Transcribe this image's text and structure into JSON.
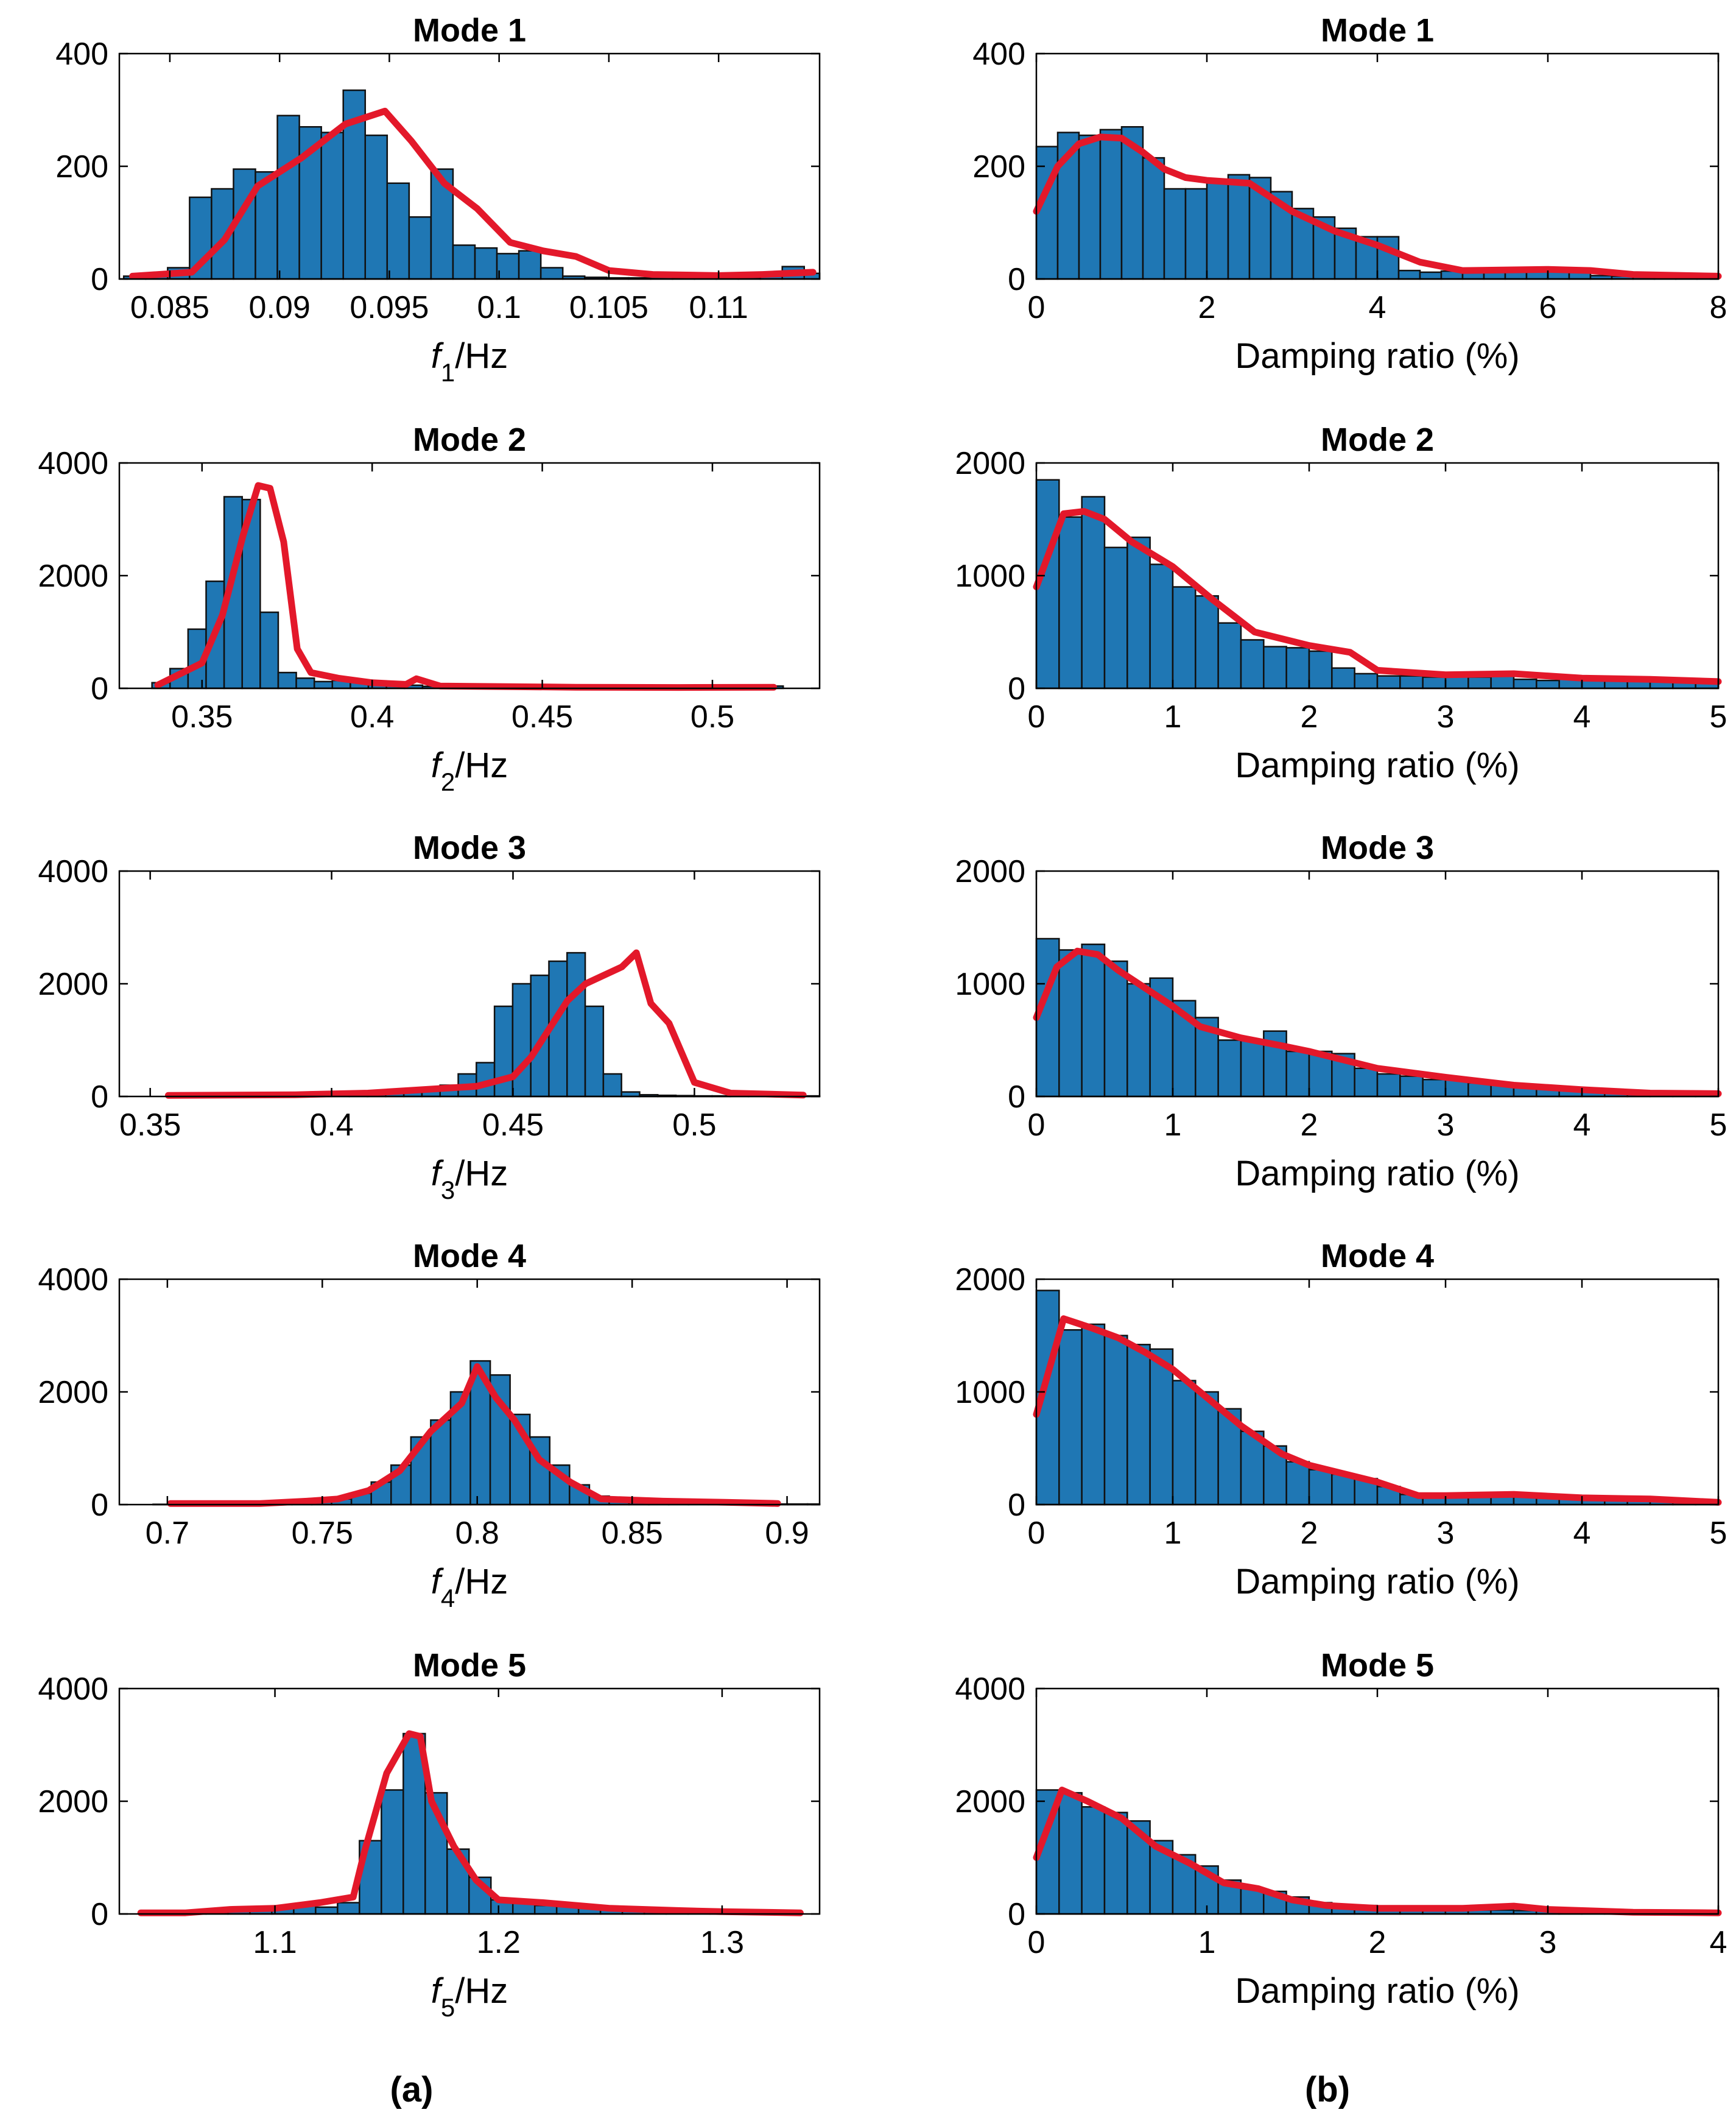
{
  "panel_labels": [
    "(a)",
    "(b)"
  ],
  "chart_data": [
    {
      "type": "bar",
      "column": "a",
      "title": "Mode 1",
      "xlabel_symbol": "f",
      "xlabel_subscript": "1",
      "xlabel_unit": "/Hz",
      "xlim": [
        0.0827,
        0.1146
      ],
      "ylim": [
        0,
        400
      ],
      "xticks": [
        0.085,
        0.09,
        0.095,
        0.1,
        0.105,
        0.11
      ],
      "xtick_labels": [
        "0.085",
        "0.09",
        "0.095",
        "0.1",
        "0.105",
        "0.11"
      ],
      "yticks": [
        0,
        200,
        400
      ],
      "ytick_labels": [
        "0",
        "200",
        "400"
      ],
      "bin_start": 0.0829,
      "bin_width": 0.001,
      "counts": [
        5,
        8,
        20,
        145,
        160,
        195,
        190,
        290,
        270,
        260,
        335,
        255,
        170,
        110,
        195,
        60,
        55,
        45,
        50,
        20,
        5,
        3,
        2,
        2,
        3,
        2,
        3,
        2,
        3,
        5,
        22,
        10
      ],
      "fit_x": [
        0.0833,
        0.086,
        0.0875,
        0.089,
        0.091,
        0.093,
        0.0948,
        0.096,
        0.0975,
        0.099,
        0.1005,
        0.102,
        0.1035,
        0.105,
        0.107,
        0.11,
        0.112,
        0.1143
      ],
      "fit_y": [
        5,
        12,
        70,
        165,
        215,
        275,
        298,
        245,
        170,
        125,
        65,
        50,
        40,
        15,
        8,
        6,
        8,
        12
      ]
    },
    {
      "type": "bar",
      "column": "b",
      "title": "Mode 1",
      "xlabel": "Damping ratio (%)",
      "xlim": [
        0,
        8
      ],
      "ylim": [
        0,
        400
      ],
      "xticks": [
        0,
        2,
        4,
        6,
        8
      ],
      "xtick_labels": [
        "0",
        "2",
        "4",
        "6",
        "8"
      ],
      "yticks": [
        0,
        200,
        400
      ],
      "ytick_labels": [
        "0",
        "200",
        "400"
      ],
      "bin_start": 0,
      "bin_width": 0.25,
      "counts": [
        235,
        260,
        255,
        265,
        270,
        215,
        160,
        160,
        175,
        185,
        180,
        155,
        125,
        110,
        90,
        75,
        75,
        15,
        12,
        14,
        14,
        14,
        13,
        14,
        14,
        12,
        6,
        5,
        5,
        4,
        4,
        4
      ],
      "fit_x": [
        0,
        0.25,
        0.5,
        0.75,
        1,
        1.25,
        1.5,
        1.75,
        2,
        2.5,
        3,
        3.5,
        4,
        4.5,
        5,
        6,
        6.5,
        7,
        8
      ],
      "fit_y": [
        120,
        200,
        240,
        252,
        250,
        225,
        195,
        180,
        175,
        170,
        120,
        85,
        60,
        30,
        15,
        17,
        15,
        8,
        5
      ]
    },
    {
      "type": "bar",
      "column": "a",
      "title": "Mode 2",
      "xlabel_symbol": "f",
      "xlabel_subscript": "2",
      "xlabel_unit": "/Hz",
      "xlim": [
        0.3257,
        0.5315
      ],
      "ylim": [
        0,
        4000
      ],
      "xticks": [
        0.35,
        0.4,
        0.45,
        0.5
      ],
      "xtick_labels": [
        "0.35",
        "0.4",
        "0.45",
        "0.5"
      ],
      "yticks": [
        0,
        2000,
        4000
      ],
      "ytick_labels": [
        "0",
        "2000",
        "4000"
      ],
      "bin_start": 0.3353,
      "bin_width": 0.0053,
      "counts": [
        100,
        350,
        1050,
        1900,
        3400,
        3350,
        1350,
        280,
        180,
        120,
        140,
        150,
        60,
        60,
        55,
        35,
        30,
        35,
        30,
        30,
        25,
        25,
        25,
        25,
        20,
        20,
        25,
        20,
        20,
        20,
        25,
        20,
        30,
        25,
        40
      ],
      "fit_x": [
        0.337,
        0.35,
        0.356,
        0.362,
        0.3665,
        0.37,
        0.374,
        0.378,
        0.382,
        0.39,
        0.4,
        0.41,
        0.413,
        0.42,
        0.44,
        0.46,
        0.49,
        0.518
      ],
      "fit_y": [
        60,
        450,
        1300,
        2700,
        3600,
        3550,
        2600,
        700,
        280,
        180,
        100,
        70,
        170,
        40,
        30,
        20,
        15,
        20
      ]
    },
    {
      "type": "bar",
      "column": "b",
      "title": "Mode 2",
      "xlabel": "Damping ratio (%)",
      "xlim": [
        0,
        5
      ],
      "ylim": [
        0,
        2000
      ],
      "xticks": [
        0,
        1,
        2,
        3,
        4,
        5
      ],
      "xtick_labels": [
        "0",
        "1",
        "2",
        "3",
        "4",
        "5"
      ],
      "yticks": [
        0,
        1000,
        2000
      ],
      "ytick_labels": [
        "0",
        "1000",
        "2000"
      ],
      "bin_start": 0,
      "bin_width": 0.166667,
      "counts": [
        1850,
        1520,
        1700,
        1250,
        1340,
        1100,
        900,
        820,
        580,
        430,
        370,
        360,
        330,
        180,
        130,
        110,
        110,
        100,
        110,
        100,
        110,
        80,
        70,
        80,
        70,
        70,
        70,
        80,
        70,
        60
      ],
      "fit_x": [
        0,
        0.2,
        0.35,
        0.5,
        0.7,
        1.0,
        1.3,
        1.6,
        2.0,
        2.3,
        2.5,
        3.0,
        3.5,
        4.0,
        4.5,
        5.0
      ],
      "fit_y": [
        900,
        1550,
        1570,
        1500,
        1300,
        1080,
        780,
        500,
        380,
        320,
        160,
        120,
        130,
        90,
        80,
        60
      ]
    },
    {
      "type": "bar",
      "column": "a",
      "title": "Mode 3",
      "xlabel_symbol": "f",
      "xlabel_subscript": "3",
      "xlabel_unit": "/Hz",
      "xlim": [
        0.3415,
        0.5345
      ],
      "ylim": [
        0,
        4000
      ],
      "xticks": [
        0.35,
        0.4,
        0.45,
        0.5
      ],
      "xtick_labels": [
        "0.35",
        "0.4",
        "0.45",
        "0.5"
      ],
      "yticks": [
        0,
        2000,
        4000
      ],
      "ytick_labels": [
        "0",
        "2000",
        "4000"
      ],
      "bin_start": 0.3549,
      "bin_width": 0.005,
      "counts": [
        5,
        5,
        5,
        5,
        5,
        5,
        10,
        15,
        20,
        30,
        40,
        50,
        70,
        100,
        150,
        200,
        400,
        600,
        1600,
        2000,
        2150,
        2400,
        2550,
        1600,
        400,
        80,
        30,
        20,
        15,
        10,
        10,
        10,
        10,
        10,
        10,
        10
      ],
      "fit_x": [
        0.355,
        0.39,
        0.41,
        0.425,
        0.44,
        0.45,
        0.455,
        0.46,
        0.465,
        0.47,
        0.475,
        0.48,
        0.484,
        0.488,
        0.493,
        0.5,
        0.51,
        0.53
      ],
      "fit_y": [
        20,
        30,
        60,
        120,
        180,
        350,
        700,
        1200,
        1700,
        2000,
        2150,
        2300,
        2550,
        1650,
        1300,
        250,
        60,
        25
      ]
    },
    {
      "type": "bar",
      "column": "b",
      "title": "Mode 3",
      "xlabel": "Damping ratio (%)",
      "xlim": [
        0,
        5
      ],
      "ylim": [
        0,
        2000
      ],
      "xticks": [
        0,
        1,
        2,
        3,
        4,
        5
      ],
      "xtick_labels": [
        "0",
        "1",
        "2",
        "3",
        "4",
        "5"
      ],
      "yticks": [
        0,
        1000,
        2000
      ],
      "ytick_labels": [
        "0",
        "1000",
        "2000"
      ],
      "bin_start": 0,
      "bin_width": 0.166667,
      "counts": [
        1400,
        1300,
        1350,
        1200,
        1000,
        1050,
        850,
        700,
        500,
        500,
        580,
        400,
        400,
        380,
        250,
        200,
        180,
        150,
        150,
        120,
        100,
        100,
        80,
        80,
        60,
        40,
        30,
        30,
        25,
        25
      ],
      "fit_x": [
        0,
        0.15,
        0.3,
        0.45,
        0.6,
        0.8,
        1.0,
        1.2,
        1.5,
        1.8,
        2.0,
        2.5,
        3.0,
        3.5,
        4.0,
        4.5,
        5.0
      ],
      "fit_y": [
        700,
        1150,
        1290,
        1260,
        1120,
        960,
        800,
        620,
        520,
        450,
        400,
        250,
        170,
        100,
        60,
        30,
        25
      ]
    },
    {
      "type": "bar",
      "column": "a",
      "title": "Mode 4",
      "xlabel_symbol": "f",
      "xlabel_subscript": "4",
      "xlabel_unit": "/Hz",
      "xlim": [
        0.6845,
        0.9105
      ],
      "ylim": [
        0,
        4000
      ],
      "xticks": [
        0.7,
        0.75,
        0.8,
        0.85,
        0.9
      ],
      "xtick_labels": [
        "0.7",
        "0.75",
        "0.8",
        "0.85",
        "0.9"
      ],
      "yticks": [
        0,
        2000,
        4000
      ],
      "ytick_labels": [
        "0",
        "2000",
        "4000"
      ],
      "bin_start": 0.6954,
      "bin_width": 0.0064,
      "counts": [
        5,
        5,
        5,
        5,
        5,
        5,
        10,
        30,
        60,
        100,
        200,
        400,
        700,
        1200,
        1500,
        2000,
        2550,
        2300,
        1600,
        1200,
        700,
        350,
        150,
        80,
        50,
        40,
        30,
        20,
        20,
        10,
        10,
        10,
        10,
        10
      ],
      "fit_x": [
        0.701,
        0.73,
        0.745,
        0.755,
        0.765,
        0.775,
        0.785,
        0.795,
        0.8,
        0.806,
        0.812,
        0.82,
        0.83,
        0.84,
        0.86,
        0.88,
        0.897
      ],
      "fit_y": [
        20,
        20,
        60,
        100,
        250,
        600,
        1300,
        1800,
        2450,
        1900,
        1500,
        800,
        400,
        100,
        60,
        40,
        20
      ]
    },
    {
      "type": "bar",
      "column": "b",
      "title": "Mode 4",
      "xlabel": "Damping ratio (%)",
      "xlim": [
        0,
        5
      ],
      "ylim": [
        0,
        2000
      ],
      "xticks": [
        0,
        1,
        2,
        3,
        4,
        5
      ],
      "xtick_labels": [
        "0",
        "1",
        "2",
        "3",
        "4",
        "5"
      ],
      "yticks": [
        0,
        1000,
        2000
      ],
      "ytick_labels": [
        "0",
        "1000",
        "2000"
      ],
      "bin_start": 0,
      "bin_width": 0.166667,
      "counts": [
        1900,
        1550,
        1600,
        1500,
        1420,
        1380,
        1100,
        1000,
        850,
        650,
        520,
        380,
        310,
        270,
        230,
        160,
        90,
        80,
        80,
        80,
        80,
        80,
        70,
        60,
        60,
        60,
        50,
        40,
        30,
        20
      ],
      "fit_x": [
        0,
        0.2,
        0.4,
        0.6,
        0.8,
        1.0,
        1.2,
        1.5,
        1.8,
        2.0,
        2.5,
        2.8,
        3.0,
        3.5,
        4.0,
        4.5,
        5.0
      ],
      "fit_y": [
        800,
        1650,
        1570,
        1480,
        1350,
        1200,
        1000,
        700,
        450,
        350,
        200,
        80,
        80,
        90,
        60,
        50,
        20
      ]
    },
    {
      "type": "bar",
      "column": "a",
      "title": "Mode 5",
      "xlabel_symbol": "f",
      "xlabel_subscript": "5",
      "xlabel_unit": "/Hz",
      "xlim": [
        1.0304,
        1.3436
      ],
      "ylim": [
        0,
        4000
      ],
      "xticks": [
        1.1,
        1.2,
        1.3
      ],
      "xtick_labels": [
        "1.1",
        "1.2",
        "1.3"
      ],
      "yticks": [
        0,
        2000,
        4000
      ],
      "ytick_labels": [
        "0",
        "2000",
        "4000"
      ],
      "bin_start": 1.0398,
      "bin_width": 0.0098,
      "counts": [
        10,
        20,
        20,
        30,
        60,
        80,
        100,
        150,
        120,
        200,
        1300,
        2200,
        3200,
        2150,
        1150,
        650,
        250,
        200,
        150,
        150,
        120,
        100,
        80,
        60,
        40,
        30,
        20,
        20,
        20,
        10
      ],
      "fit_x": [
        1.04,
        1.06,
        1.08,
        1.1,
        1.12,
        1.135,
        1.14,
        1.15,
        1.16,
        1.165,
        1.17,
        1.18,
        1.19,
        1.2,
        1.22,
        1.25,
        1.28,
        1.3,
        1.335
      ],
      "fit_y": [
        20,
        20,
        80,
        100,
        200,
        300,
        1100,
        2500,
        3200,
        3150,
        2000,
        1200,
        600,
        250,
        200,
        100,
        60,
        40,
        20
      ]
    },
    {
      "type": "bar",
      "column": "b",
      "title": "Mode 5",
      "xlabel": "Damping ratio (%)",
      "xlim": [
        0,
        4
      ],
      "ylim": [
        0,
        4000
      ],
      "xticks": [
        0,
        1,
        2,
        3,
        4
      ],
      "xtick_labels": [
        "0",
        "1",
        "2",
        "3",
        "4"
      ],
      "yticks": [
        0,
        2000,
        4000
      ],
      "ytick_labels": [
        "0",
        "2000",
        "4000"
      ],
      "bin_start": 0,
      "bin_width": 0.1333,
      "counts": [
        2200,
        2150,
        1900,
        1800,
        1650,
        1300,
        1050,
        850,
        600,
        450,
        400,
        300,
        200,
        150,
        150,
        120,
        100,
        80,
        80,
        70,
        70,
        60,
        60,
        50,
        40,
        30,
        20,
        20,
        20,
        20
      ],
      "fit_x": [
        0,
        0.15,
        0.3,
        0.5,
        0.7,
        0.9,
        1.1,
        1.3,
        1.5,
        1.7,
        2.0,
        2.5,
        2.8,
        3.0,
        3.5,
        4.0
      ],
      "fit_y": [
        1000,
        2200,
        2000,
        1700,
        1200,
        900,
        550,
        450,
        250,
        150,
        100,
        100,
        140,
        80,
        30,
        20
      ]
    }
  ]
}
